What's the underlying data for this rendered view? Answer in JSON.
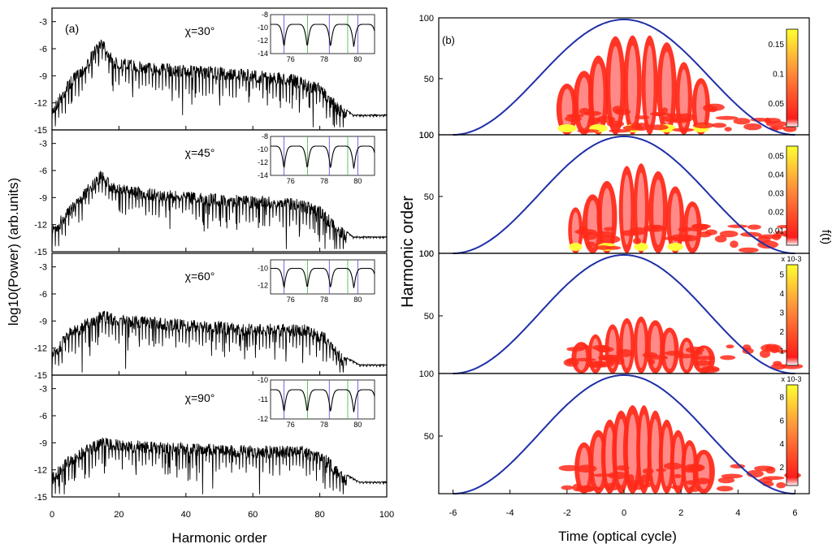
{
  "chart_data": [
    {
      "id": "panel_a",
      "type": "line",
      "label": "(a)",
      "xlabel": "Harmonic order",
      "ylabel": "log10(Power) (arb.units)",
      "xlim": [
        0,
        100
      ],
      "ylim": [
        -15,
        -1.5
      ],
      "xticks": [
        0,
        20,
        40,
        60,
        80,
        100
      ],
      "yticks": [
        -3,
        -6,
        -9,
        -12,
        -15
      ],
      "subplots": [
        {
          "chi_label": "χ=30°",
          "profile": [
            [
              0,
              -13
            ],
            [
              5,
              -10
            ],
            [
              10,
              -8
            ],
            [
              15,
              -5
            ],
            [
              18,
              -7.5
            ],
            [
              25,
              -8
            ],
            [
              40,
              -8.5
            ],
            [
              60,
              -9
            ],
            [
              72,
              -9.5
            ],
            [
              80,
              -10.5
            ],
            [
              85,
              -12.5
            ],
            [
              90,
              -14
            ],
            [
              100,
              -14
            ]
          ],
          "inset": {
            "xticks": [
              76,
              78,
              80
            ],
            "yticks": [
              -8,
              -10,
              -12,
              -14
            ],
            "ylim": [
              -14,
              -8
            ]
          }
        },
        {
          "chi_label": "χ=45°",
          "profile": [
            [
              0,
              -13
            ],
            [
              5,
              -10.5
            ],
            [
              10,
              -8.5
            ],
            [
              15,
              -6.5
            ],
            [
              18,
              -8
            ],
            [
              25,
              -8.5
            ],
            [
              40,
              -9
            ],
            [
              60,
              -9.5
            ],
            [
              72,
              -9.7
            ],
            [
              80,
              -10.5
            ],
            [
              85,
              -12.5
            ],
            [
              90,
              -14
            ],
            [
              100,
              -14
            ]
          ],
          "inset": {
            "xticks": [
              76,
              78,
              80
            ],
            "yticks": [
              -8,
              -10,
              -12,
              -14
            ],
            "ylim": [
              -14,
              -8
            ]
          }
        },
        {
          "chi_label": "χ=60°",
          "profile": [
            [
              0,
              -13
            ],
            [
              5,
              -10.5
            ],
            [
              10,
              -9.5
            ],
            [
              15,
              -8.5
            ],
            [
              20,
              -9
            ],
            [
              40,
              -9.5
            ],
            [
              60,
              -10
            ],
            [
              75,
              -10
            ],
            [
              82,
              -11
            ],
            [
              87,
              -13.5
            ],
            [
              92,
              -14.5
            ],
            [
              100,
              -14.5
            ]
          ],
          "inset": {
            "xticks": [
              76,
              78,
              80
            ],
            "yticks": [
              -10,
              -12
            ],
            "ylim": [
              -13,
              -9
            ]
          }
        },
        {
          "chi_label": "χ=90°",
          "profile": [
            [
              0,
              -13
            ],
            [
              5,
              -11
            ],
            [
              10,
              -10
            ],
            [
              15,
              -9
            ],
            [
              20,
              -9.3
            ],
            [
              40,
              -9.7
            ],
            [
              60,
              -10
            ],
            [
              75,
              -10
            ],
            [
              82,
              -11
            ],
            [
              87,
              -13
            ],
            [
              92,
              -14
            ],
            [
              100,
              -14
            ]
          ],
          "inset": {
            "xticks": [
              76,
              78,
              80
            ],
            "yticks": [
              -10,
              -11,
              -12
            ],
            "ylim": [
              -12,
              -10
            ]
          }
        }
      ]
    },
    {
      "id": "panel_b",
      "type": "heatmap",
      "label": "(b)",
      "xlabel": "Time (optical cycle)",
      "ylabel": "Harmonic order",
      "ylabel_right": "f(t)",
      "xlim": [
        -6.5,
        6.5
      ],
      "xticks": [
        -6,
        -4,
        -2,
        0,
        2,
        4,
        6
      ],
      "ylim": [
        0,
        100
      ],
      "subplots": [
        {
          "yticks": [
            100,
            50,
            100
          ],
          "colorbar": {
            "ticks": [
              "0.15",
              "0.1",
              "0.05"
            ],
            "exp": ""
          },
          "peak_level": 1.0,
          "bursts": [
            -2.0,
            -1.4,
            -0.9,
            -0.3,
            0.3,
            0.9,
            1.5,
            2.1,
            2.7
          ]
        },
        {
          "yticks": [
            100,
            50,
            100
          ],
          "colorbar": {
            "ticks": [
              "0.05",
              "0.04",
              "0.03",
              "0.02",
              "0.01"
            ],
            "exp": ""
          },
          "peak_level": 0.8,
          "bursts": [
            -1.7,
            -1.1,
            -0.6,
            0.1,
            0.6,
            1.2,
            1.8,
            2.4
          ]
        },
        {
          "yticks": [
            100,
            50,
            100
          ],
          "colorbar": {
            "ticks": [
              "5",
              "4",
              "3",
              "2",
              "1"
            ],
            "exp": "x 10-3"
          },
          "peak_level": 0.5,
          "bursts": [
            -1.5,
            -1.0,
            -0.4,
            0.1,
            0.6,
            1.1,
            1.6,
            2.2,
            2.8
          ]
        },
        {
          "yticks": [
            50
          ],
          "colorbar": {
            "ticks": [
              "8",
              "6",
              "4",
              "2"
            ],
            "exp": "x 10-3"
          },
          "peak_level": 0.6,
          "bursts": [
            -1.4,
            -0.9,
            -0.5,
            -0.1,
            0.3,
            0.7,
            1.1,
            1.5,
            1.9,
            2.3,
            2.8
          ]
        }
      ],
      "envelope": "cos^2 pulse spanning -6 to 6 optical cycles",
      "colors": {
        "envelope": "#1f2fa8",
        "contour_low": "#ff2a1a",
        "contour_mid": "#ffa0a0",
        "contour_high": "#ffff3a"
      }
    }
  ]
}
